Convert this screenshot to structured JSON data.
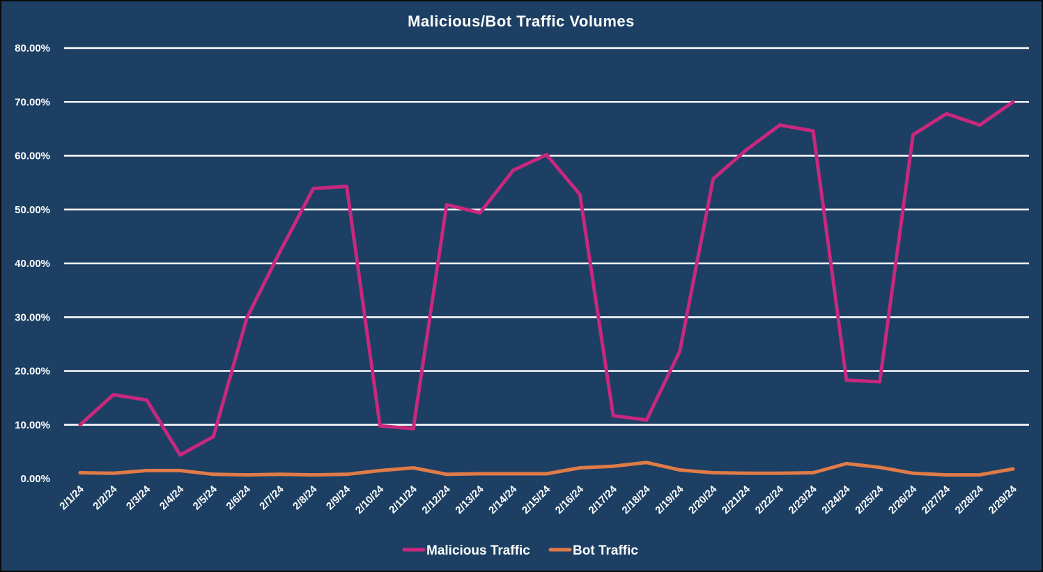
{
  "chart_data": {
    "type": "line",
    "title": "Malicious/Bot Traffic Volumes",
    "xlabel": "",
    "ylabel": "",
    "ylim": [
      0,
      80
    ],
    "y_ticks": [
      "0.00%",
      "10.00%",
      "20.00%",
      "30.00%",
      "40.00%",
      "50.00%",
      "60.00%",
      "70.00%",
      "80.00%"
    ],
    "y_tick_values": [
      0,
      10,
      20,
      30,
      40,
      50,
      60,
      70,
      80
    ],
    "grid": true,
    "legend_position": "bottom",
    "x": [
      "2/1/24",
      "2/2/24",
      "2/3/24",
      "2/4/24",
      "2/5/24",
      "2/6/24",
      "2/7/24",
      "2/8/24",
      "2/9/24",
      "2/10/24",
      "2/11/24",
      "2/12/24",
      "2/13/24",
      "2/14/24",
      "2/15/24",
      "2/16/24",
      "2/17/24",
      "2/18/24",
      "2/19/24",
      "2/20/24",
      "2/21/24",
      "2/22/24",
      "2/23/24",
      "2/24/24",
      "2/25/24",
      "2/26/24",
      "2/27/24",
      "2/28/24",
      "2/29/24"
    ],
    "series": [
      {
        "name": "Malicious Traffic",
        "color": "#c8287e",
        "values": [
          10.0,
          15.6,
          14.6,
          4.4,
          7.8,
          29.8,
          42.2,
          53.9,
          54.3,
          9.8,
          9.3,
          50.9,
          49.4,
          57.3,
          60.2,
          52.8,
          11.7,
          10.9,
          23.7,
          55.7,
          61.1,
          65.7,
          64.6,
          18.3,
          18.0,
          63.9,
          67.8,
          65.7,
          70.0
        ]
      },
      {
        "name": "Bot Traffic",
        "color": "#e07b47",
        "values": [
          1.1,
          1.0,
          1.5,
          1.5,
          0.8,
          0.7,
          0.8,
          0.7,
          0.8,
          1.5,
          2.0,
          0.8,
          0.9,
          0.9,
          0.9,
          2.0,
          2.3,
          3.0,
          1.6,
          1.1,
          1.0,
          1.0,
          1.1,
          2.8,
          2.1,
          1.0,
          0.7,
          0.7,
          1.8
        ]
      }
    ]
  }
}
